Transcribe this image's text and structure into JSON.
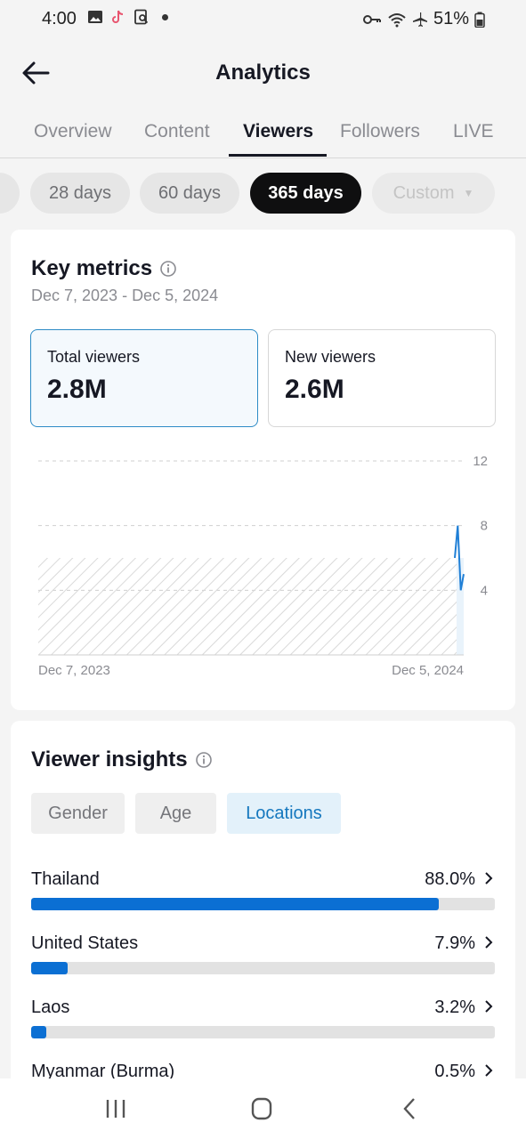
{
  "status_bar": {
    "time": "4:00",
    "battery": "51%",
    "left_icons": [
      "gallery-icon",
      "tiktok-icon",
      "search-doc-icon"
    ],
    "right_icons": [
      "vpn-key-icon",
      "wifi-icon",
      "airplane-icon",
      "battery-icon"
    ]
  },
  "header": {
    "title": "Analytics"
  },
  "tabs": [
    {
      "label": "Overview",
      "active": false
    },
    {
      "label": "Content",
      "active": false
    },
    {
      "label": "Viewers",
      "active": true
    },
    {
      "label": "Followers",
      "active": false
    },
    {
      "label": "LIVE",
      "active": false
    }
  ],
  "date_filters": [
    {
      "label": "28 days",
      "active": false
    },
    {
      "label": "60 days",
      "active": false
    },
    {
      "label": "365 days",
      "active": true
    },
    {
      "label": "Custom",
      "active": false,
      "disabled": true
    }
  ],
  "key_metrics": {
    "title": "Key metrics",
    "date_range": "Dec 7, 2023 - Dec 5, 2024",
    "metrics": [
      {
        "label": "Total viewers",
        "value": "2.8M",
        "selected": true
      },
      {
        "label": "New viewers",
        "value": "2.6M",
        "selected": false
      }
    ]
  },
  "chart_data": {
    "type": "line",
    "title": "",
    "xlabel": "",
    "ylabel": "",
    "x_tick_labels": [
      "Dec 7, 2023",
      "Dec 5, 2024"
    ],
    "y_ticks": [
      4,
      8,
      12
    ],
    "ylim": [
      0,
      12
    ],
    "grid": true,
    "legend": "none",
    "colors": {
      "line": "#1f7fd6",
      "hatch": "#d9d9d9",
      "grid": "#cfcfcf"
    },
    "no_data_region": {
      "x_range": [
        "Dec 7, 2023",
        "Dec 1, 2024"
      ],
      "level": 6
    },
    "series": [
      {
        "x": [
          "Dec 2, 2024",
          "Dec 3, 2024",
          "Dec 4, 2024",
          "Dec 5, 2024"
        ],
        "values": [
          6,
          8,
          4,
          5
        ]
      }
    ]
  },
  "viewer_insights": {
    "title": "Viewer insights",
    "segments": [
      {
        "label": "Gender",
        "active": false
      },
      {
        "label": "Age",
        "active": false
      },
      {
        "label": "Locations",
        "active": true
      }
    ],
    "locations": [
      {
        "name": "Thailand",
        "percent": "88.0%",
        "fraction": 0.88
      },
      {
        "name": "United States",
        "percent": "7.9%",
        "fraction": 0.079
      },
      {
        "name": "Laos",
        "percent": "3.2%",
        "fraction": 0.032
      },
      {
        "name": "Myanmar (Burma)",
        "percent": "0.5%",
        "fraction": 0.005
      }
    ]
  },
  "nav_bar": {
    "icons": [
      "recent-apps-icon",
      "home-icon",
      "back-nav-icon"
    ]
  }
}
